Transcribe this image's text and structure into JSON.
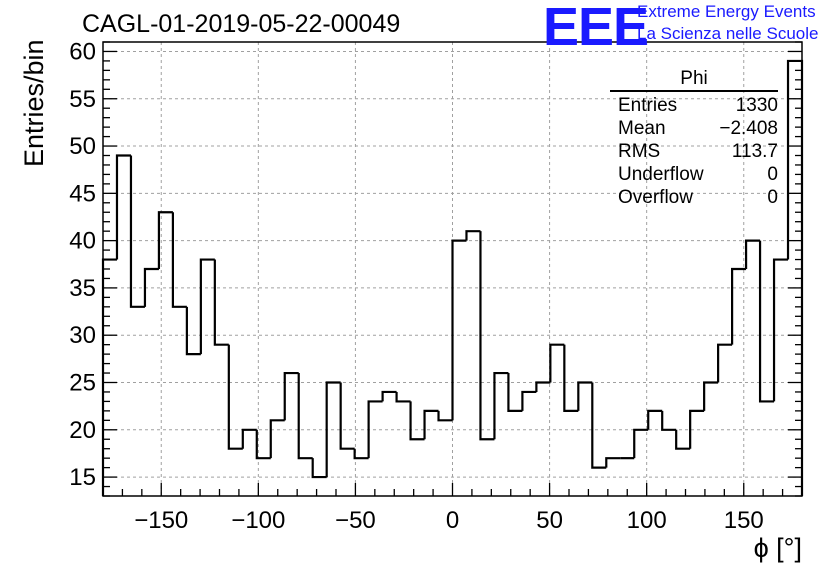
{
  "chart_data": {
    "type": "histogram",
    "title": "CAGL-01-2019-05-22-00049",
    "xlabel": "ϕ [°]",
    "ylabel": "Entries/bin",
    "xlim": [
      -180,
      180
    ],
    "ylim": [
      13,
      61
    ],
    "x_ticks": [
      -150,
      -100,
      -50,
      0,
      50,
      100,
      150
    ],
    "x_tick_labels": [
      "−150",
      "−100",
      "−50",
      "0",
      "50",
      "100",
      "150"
    ],
    "y_ticks": [
      15,
      20,
      25,
      30,
      35,
      40,
      45,
      50,
      55,
      60
    ],
    "y_tick_labels": [
      "15",
      "20",
      "25",
      "30",
      "35",
      "40",
      "45",
      "50",
      "55",
      "60"
    ],
    "grid": true,
    "bin_edges_start": -180,
    "bin_width": 7.2,
    "values": [
      38,
      49,
      33,
      37,
      43,
      33,
      28,
      38,
      29,
      18,
      20,
      17,
      21,
      26,
      17,
      15,
      25,
      18,
      17,
      23,
      24,
      23,
      19,
      22,
      21,
      40,
      41,
      19,
      26,
      22,
      24,
      25,
      29,
      22,
      25,
      16,
      17,
      17,
      20,
      22,
      20,
      18,
      22,
      25,
      29,
      37,
      40,
      23,
      38,
      59
    ]
  },
  "stats": {
    "name": "Phi",
    "rows": [
      {
        "label": "Entries",
        "value": "1330"
      },
      {
        "label": "Mean",
        "value": "−2.408"
      },
      {
        "label": "RMS",
        "value": "113.7"
      },
      {
        "label": "Underflow",
        "value": "0"
      },
      {
        "label": "Overflow",
        "value": "0"
      }
    ]
  },
  "logo": {
    "mark": "EEE",
    "line1": "Extreme Energy Events",
    "line2": "La Scienza nelle Scuole",
    "color": "#1a1aff"
  }
}
